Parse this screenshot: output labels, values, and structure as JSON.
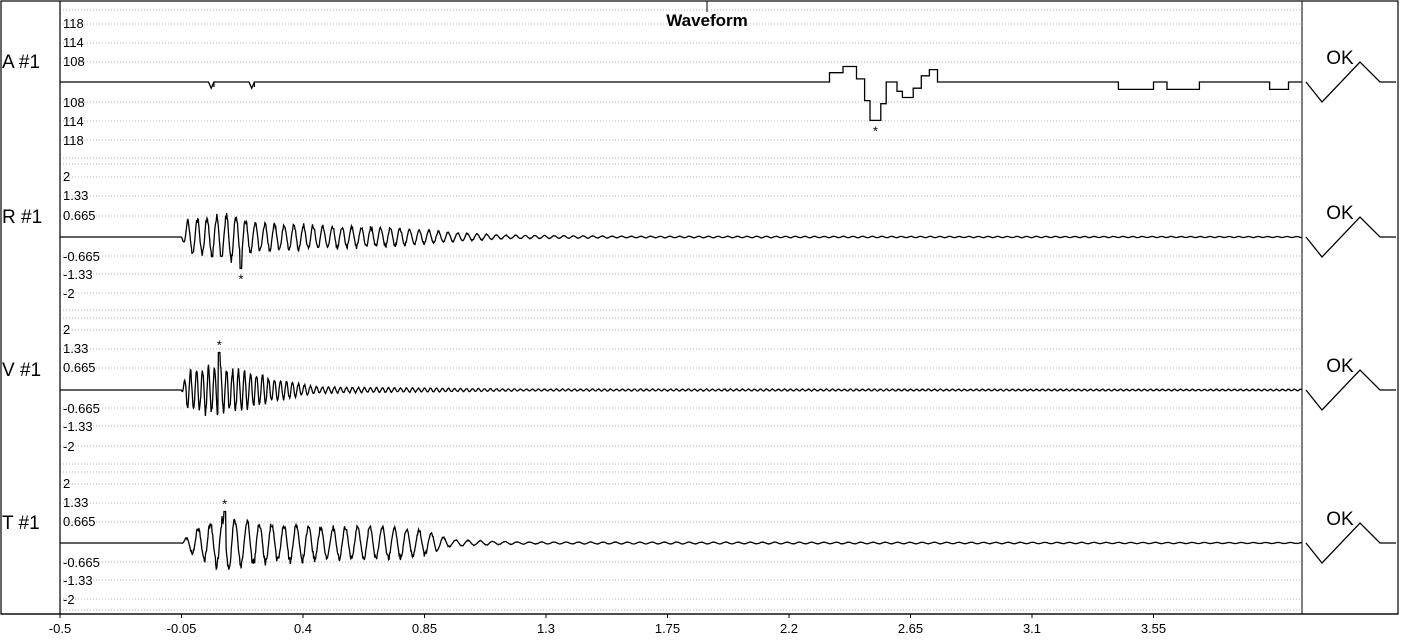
{
  "title": "Waveform",
  "colors": {
    "trace": "#000000",
    "grid": "#a0a0a0",
    "background": "#ffffff"
  },
  "chart_data": {
    "type": "line",
    "title": "Waveform",
    "xlabel": "",
    "ylabel": "",
    "grid": true,
    "xlim": [
      -0.5,
      4.1
    ],
    "x_ticks": [
      "-0.5",
      "-0.05",
      "0.4",
      "0.85",
      "1.3",
      "1.75",
      "2.2",
      "2.65",
      "3.1",
      "3.55"
    ],
    "x_tick_values": [
      -0.5,
      -0.05,
      0.4,
      0.85,
      1.3,
      1.75,
      2.2,
      2.65,
      3.1,
      3.55
    ],
    "channels": [
      {
        "label": "A #1",
        "status": "OK",
        "y_ticks_upper": [
          "118",
          "114",
          "108"
        ],
        "y_ticks_lower": [
          "108",
          "114",
          "118"
        ],
        "peak_marker": "*",
        "peak_x": 2.52,
        "points": [
          [
            -0.05,
            0
          ],
          [
            0.05,
            0
          ],
          [
            0.06,
            -0.1
          ],
          [
            0.07,
            0
          ],
          [
            0.2,
            0
          ],
          [
            0.21,
            -0.1
          ],
          [
            0.22,
            0
          ],
          [
            2.35,
            0
          ],
          [
            2.35,
            0.15
          ],
          [
            2.4,
            0.15
          ],
          [
            2.4,
            0.25
          ],
          [
            2.45,
            0.25
          ],
          [
            2.45,
            0.05
          ],
          [
            2.48,
            0.05
          ],
          [
            2.48,
            -0.3
          ],
          [
            2.5,
            -0.3
          ],
          [
            2.5,
            -0.62
          ],
          [
            2.54,
            -0.62
          ],
          [
            2.54,
            -0.35
          ],
          [
            2.56,
            -0.35
          ],
          [
            2.56,
            0
          ],
          [
            2.6,
            0
          ],
          [
            2.6,
            -0.15
          ],
          [
            2.62,
            -0.15
          ],
          [
            2.62,
            -0.25
          ],
          [
            2.66,
            -0.25
          ],
          [
            2.66,
            -0.1
          ],
          [
            2.69,
            -0.1
          ],
          [
            2.69,
            0.1
          ],
          [
            2.72,
            0.1
          ],
          [
            2.72,
            0.2
          ],
          [
            2.75,
            0.2
          ],
          [
            2.75,
            0
          ],
          [
            3.42,
            0
          ],
          [
            3.42,
            -0.12
          ],
          [
            3.55,
            -0.12
          ],
          [
            3.55,
            0
          ],
          [
            3.6,
            0
          ],
          [
            3.6,
            -0.12
          ],
          [
            3.72,
            -0.12
          ],
          [
            3.72,
            0
          ],
          [
            3.98,
            0
          ],
          [
            3.98,
            -0.12
          ],
          [
            4.05,
            -0.12
          ],
          [
            4.05,
            0
          ],
          [
            4.1,
            0
          ]
        ]
      },
      {
        "label": "R #1",
        "status": "OK",
        "y_ticks_upper": [
          "2",
          "1.33",
          "0.665"
        ],
        "y_ticks_lower": [
          "-0.665",
          "-1.33",
          "-2"
        ],
        "peak_marker": "*",
        "peak_x": 0.17,
        "envelope": [
          [
            -0.5,
            0
          ],
          [
            -0.05,
            0
          ],
          [
            -0.03,
            0.6
          ],
          [
            0.05,
            0.8
          ],
          [
            0.15,
            0.9
          ],
          [
            0.22,
            0.55
          ],
          [
            0.45,
            0.45
          ],
          [
            0.75,
            0.35
          ],
          [
            0.95,
            0.18
          ],
          [
            1.15,
            0.07
          ],
          [
            1.6,
            0.03
          ],
          [
            4.1,
            0.02
          ]
        ],
        "frequency": 28,
        "spike": {
          "x": 0.17,
          "value": -1.05
        }
      },
      {
        "label": "V #1",
        "status": "OK",
        "y_ticks_upper": [
          "2",
          "1.33",
          "0.665"
        ],
        "y_ticks_lower": [
          "-0.665",
          "-1.33",
          "-2"
        ],
        "peak_marker": "*",
        "peak_x": 0.09,
        "envelope": [
          [
            -0.5,
            0
          ],
          [
            -0.05,
            0
          ],
          [
            -0.03,
            0.7
          ],
          [
            0.05,
            0.9
          ],
          [
            0.2,
            0.7
          ],
          [
            0.3,
            0.4
          ],
          [
            0.45,
            0.12
          ],
          [
            0.8,
            0.08
          ],
          [
            1.2,
            0.04
          ],
          [
            4.1,
            0.03
          ]
        ],
        "frequency": 45,
        "spike": {
          "x": 0.09,
          "value": 1.25
        }
      },
      {
        "label": "T #1",
        "status": "OK",
        "y_ticks_upper": [
          "2",
          "1.33",
          "0.665"
        ],
        "y_ticks_lower": [
          "-0.665",
          "-1.33",
          "-2"
        ],
        "peak_marker": "*",
        "peak_x": 0.11,
        "envelope": [
          [
            -0.5,
            0
          ],
          [
            -0.05,
            0
          ],
          [
            0.0,
            0.55
          ],
          [
            0.11,
            1.0
          ],
          [
            0.3,
            0.75
          ],
          [
            0.5,
            0.6
          ],
          [
            0.7,
            0.65
          ],
          [
            0.85,
            0.5
          ],
          [
            0.95,
            0.12
          ],
          [
            1.2,
            0.04
          ],
          [
            4.1,
            0.02
          ]
        ],
        "frequency": 22,
        "spike": {
          "x": 0.11,
          "value": 1.05
        }
      }
    ]
  }
}
